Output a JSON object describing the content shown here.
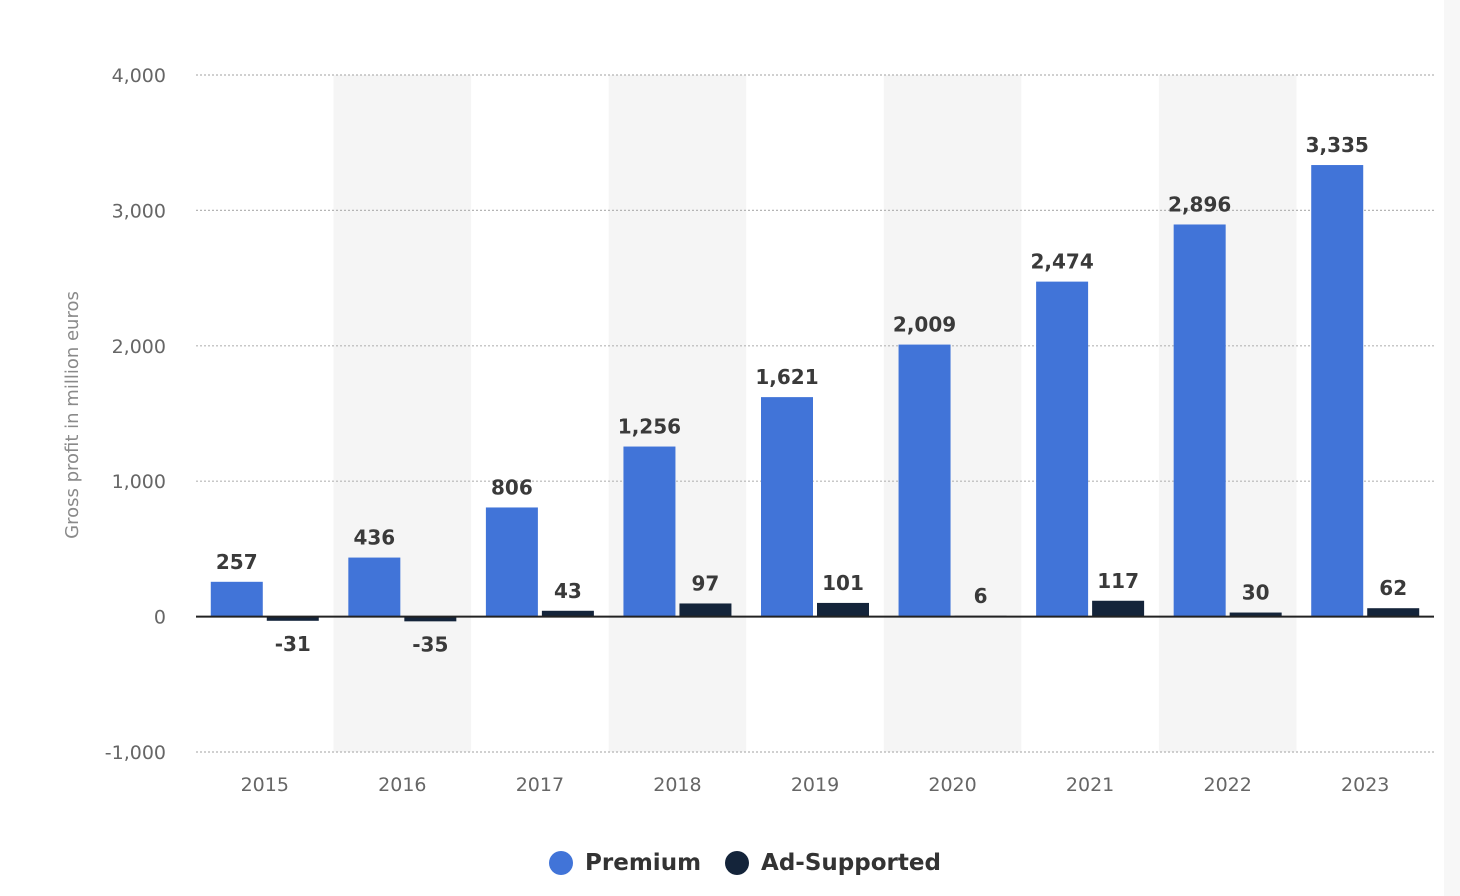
{
  "chart_data": {
    "type": "bar",
    "categories": [
      "2015",
      "2016",
      "2017",
      "2018",
      "2019",
      "2020",
      "2021",
      "2022",
      "2023"
    ],
    "series": [
      {
        "name": "Premium",
        "color": "#4174d8",
        "values": [
          257,
          436,
          806,
          1256,
          1621,
          2009,
          2474,
          2896,
          3335
        ],
        "labels": [
          "257",
          "436",
          "806",
          "1,256",
          "1,621",
          "2,009",
          "2,474",
          "2,896",
          "3,335"
        ]
      },
      {
        "name": "Ad-Supported",
        "color": "#14243a",
        "values": [
          -31,
          -35,
          43,
          97,
          101,
          6,
          117,
          30,
          62
        ],
        "labels": [
          "-31",
          "-35",
          "43",
          "97",
          "101",
          "6",
          "117",
          "30",
          "62"
        ]
      }
    ],
    "title": "",
    "xlabel": "",
    "ylabel": "Gross profit in million euros",
    "ylim": [
      -1000,
      4000
    ],
    "yticks": [
      {
        "value": -1000,
        "label": "-1,000"
      },
      {
        "value": 0,
        "label": "0"
      },
      {
        "value": 1000,
        "label": "1,000"
      },
      {
        "value": 2000,
        "label": "2,000"
      },
      {
        "value": 3000,
        "label": "3,000"
      },
      {
        "value": 4000,
        "label": "4,000"
      }
    ],
    "grid": true,
    "alternating_band_color": "#f5f5f5",
    "legend_position": "bottom-center",
    "data_labels": true
  },
  "legend": {
    "items": [
      {
        "label": "Premium",
        "color": "#4174d8"
      },
      {
        "label": "Ad-Supported",
        "color": "#14243a"
      }
    ]
  }
}
